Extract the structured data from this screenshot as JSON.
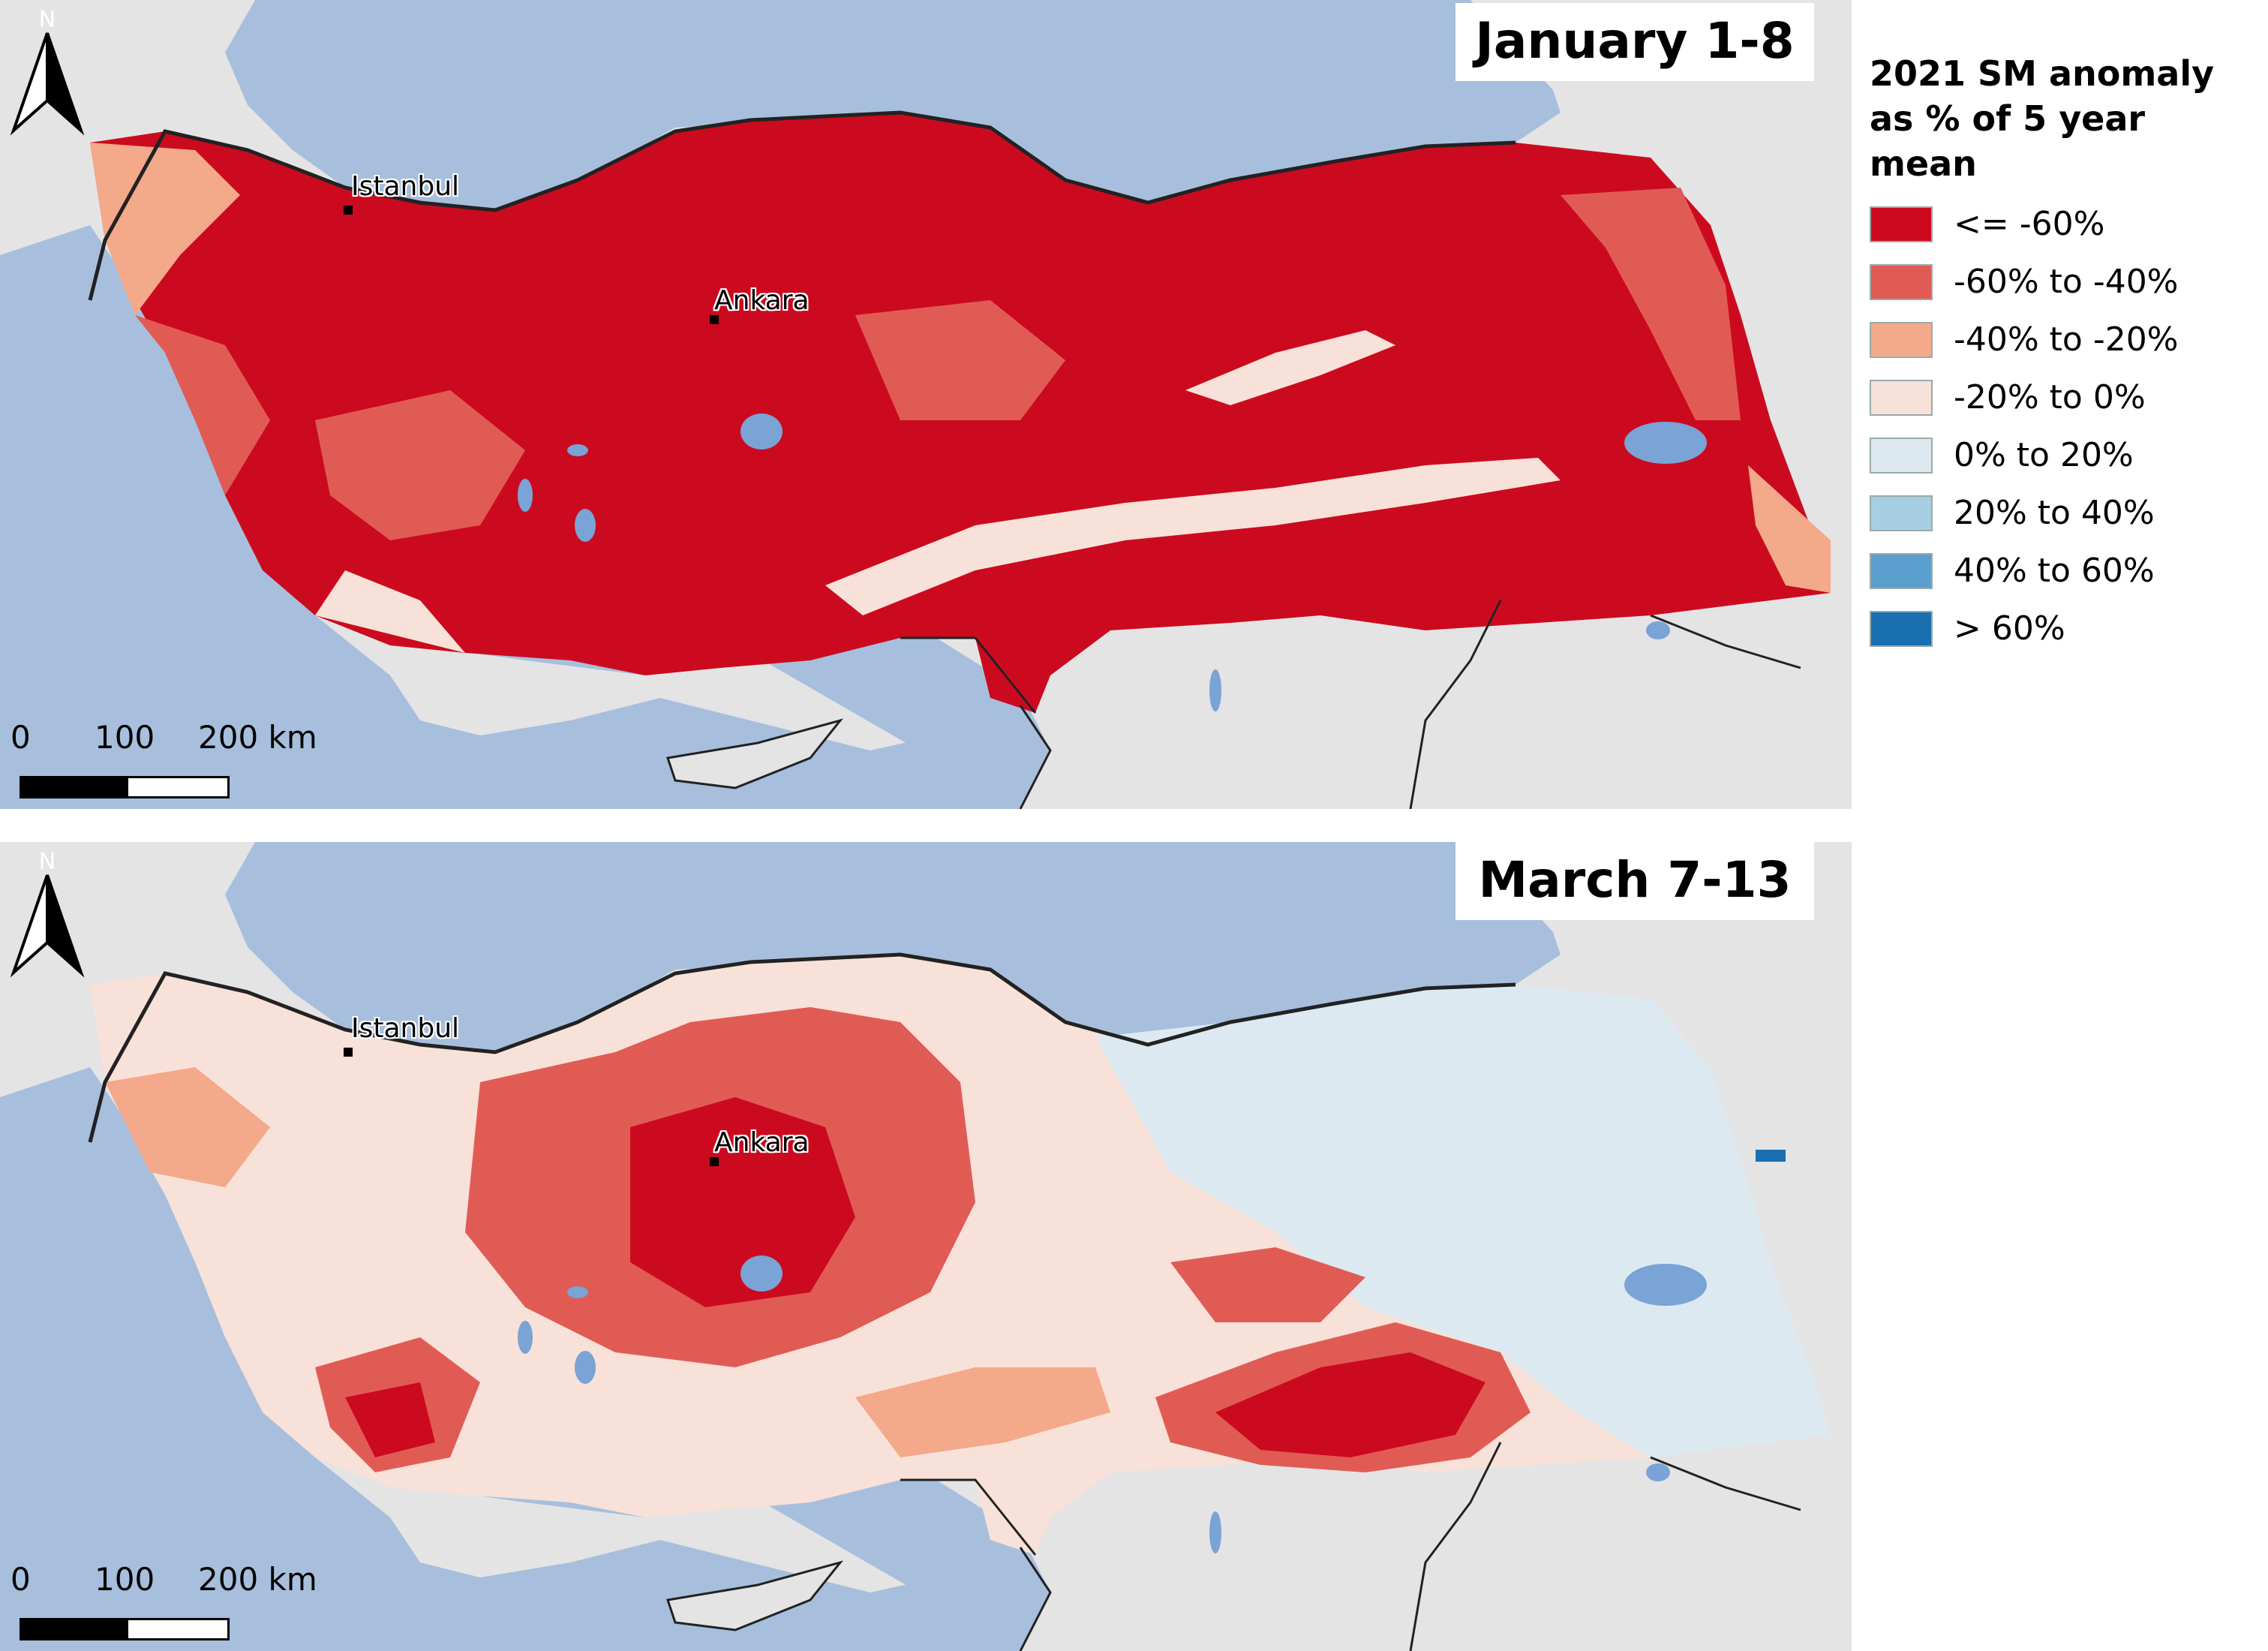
{
  "panels": [
    {
      "title": "January 1-8"
    },
    {
      "title": "March 7-13"
    }
  ],
  "cities": [
    {
      "name": "Istanbul"
    },
    {
      "name": "Ankara"
    }
  ],
  "north_label": "N",
  "scale_labels": {
    "zero": "0",
    "mid": "100",
    "end": "200 km"
  },
  "legend": {
    "title": "2021 SM anomaly\nas % of 5 year mean",
    "classes": [
      {
        "label": "<= -60%",
        "color": "#cc0a1f"
      },
      {
        "label": "-60% to -40%",
        "color": "#e15b55"
      },
      {
        "label": "-40% to -20%",
        "color": "#f3a98a"
      },
      {
        "label": "-20% to 0%",
        "color": "#f8e1d8"
      },
      {
        "label": "0% to 20%",
        "color": "#dde9f1"
      },
      {
        "label": "20% to 40%",
        "color": "#a8cee4"
      },
      {
        "label": "40% to 60%",
        "color": "#5a9fcd"
      },
      {
        "label": "> 60%",
        "color": "#1a6fb0"
      }
    ]
  },
  "colors": {
    "sea": "#a7bfdd",
    "land": "#e4e4e4",
    "lakes": "#7aa3d6"
  }
}
